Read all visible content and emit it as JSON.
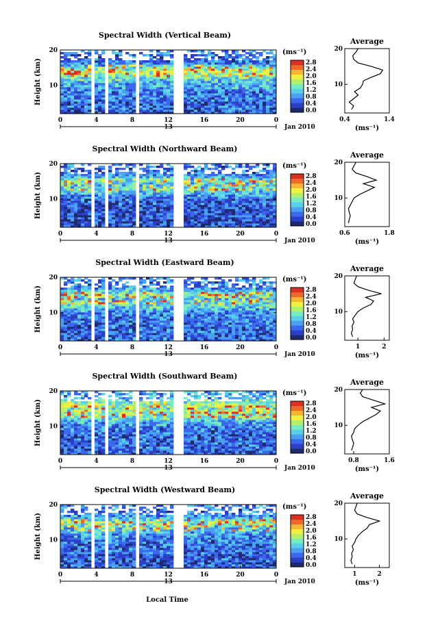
{
  "figure": {
    "time_axis_label": "Local Time",
    "date_label": "Jan 2010",
    "day_label": "13",
    "height_label": "Height (km)",
    "colorbar_unit": "(ms⁻¹)",
    "colorbar_ticks": [
      "0.0",
      "0.4",
      "0.8",
      "1.2",
      "1.6",
      "2.0",
      "2.4",
      "2.8"
    ],
    "colorscale": [
      "#1e2a6e",
      "#2c3fc8",
      "#3a68ee",
      "#4aa0f2",
      "#58d0ec",
      "#76ecc0",
      "#b6f06a",
      "#f0f040",
      "#f6b634",
      "#ee6a2a",
      "#dc3024"
    ],
    "average_title": "Average",
    "average_unit": "(ms⁻¹)"
  },
  "chart_data": [
    {
      "type": "heatmap",
      "title": "Spectral Width (Vertical Beam)",
      "xlabel": "Local Time",
      "ylabel": "Height (km)",
      "xlim": [
        0,
        24
      ],
      "ylim": [
        2,
        20
      ],
      "x_ticks": [
        "0",
        "4",
        "8",
        "12",
        "16",
        "20",
        "0"
      ],
      "y_ticks": [
        "10",
        "20"
      ],
      "colorbar": {
        "min": 0.0,
        "max": 3.0,
        "unit": "(ms⁻¹)"
      },
      "gaps_hours": [
        [
          3.6,
          3.8
        ],
        [
          5.0,
          5.2
        ],
        [
          5.6,
          5.8
        ],
        [
          8.5,
          8.7
        ],
        [
          10.9,
          11.1
        ],
        [
          12.4,
          13.8
        ],
        [
          17.8,
          18.0
        ]
      ],
      "average": {
        "title": "Average",
        "xlabel": "(ms⁻¹)",
        "xlim": [
          0.4,
          1.4
        ],
        "x_ticks": [
          "0.4",
          "1.4"
        ],
        "y_ticks": [
          "10",
          "20"
        ],
        "height_km": [
          3,
          4,
          5,
          6,
          7,
          8,
          9,
          10,
          11,
          12,
          13,
          14,
          15,
          16,
          17,
          18,
          19,
          20
        ],
        "width_ms": [
          0.55,
          0.6,
          0.5,
          0.6,
          0.7,
          0.62,
          0.75,
          0.8,
          0.82,
          1.0,
          1.2,
          1.25,
          1.0,
          0.7,
          0.6,
          0.58,
          0.65,
          0.7
        ]
      }
    },
    {
      "type": "heatmap",
      "title": "Spectral Width (Northward Beam)",
      "xlabel": "Local Time",
      "ylabel": "Height (km)",
      "xlim": [
        0,
        24
      ],
      "ylim": [
        2,
        20
      ],
      "x_ticks": [
        "0",
        "4",
        "8",
        "12",
        "16",
        "20",
        "0"
      ],
      "y_ticks": [
        "10",
        "20"
      ],
      "colorbar": {
        "min": 0.0,
        "max": 3.0,
        "unit": "(ms⁻¹)"
      },
      "gaps_hours": [
        [
          3.6,
          3.8
        ],
        [
          5.0,
          5.2
        ],
        [
          5.6,
          5.8
        ],
        [
          8.5,
          8.7
        ],
        [
          10.9,
          11.1
        ],
        [
          12.4,
          13.8
        ],
        [
          17.8,
          18.0
        ]
      ],
      "average": {
        "title": "Average",
        "xlabel": "(ms⁻¹)",
        "xlim": [
          0.6,
          1.8
        ],
        "x_ticks": [
          "0.6",
          "1.8"
        ],
        "y_ticks": [
          "10",
          "20"
        ],
        "height_km": [
          3,
          4,
          5,
          6,
          7,
          8,
          9,
          10,
          11,
          12,
          13,
          14,
          15,
          16,
          17,
          18,
          19,
          20
        ],
        "width_ms": [
          0.7,
          0.72,
          0.75,
          0.72,
          0.7,
          0.75,
          0.8,
          0.85,
          1.0,
          1.2,
          1.4,
          1.1,
          1.45,
          1.2,
          0.9,
          0.8,
          0.85,
          0.9
        ]
      }
    },
    {
      "type": "heatmap",
      "title": "Spectral Width (Eastward Beam)",
      "xlabel": "Local Time",
      "ylabel": "Height (km)",
      "xlim": [
        0,
        24
      ],
      "ylim": [
        2,
        20
      ],
      "x_ticks": [
        "0",
        "4",
        "8",
        "12",
        "16",
        "20",
        "0"
      ],
      "y_ticks": [
        "10",
        "20"
      ],
      "colorbar": {
        "min": 0.0,
        "max": 3.0,
        "unit": "(ms⁻¹)"
      },
      "gaps_hours": [
        [
          3.6,
          3.8
        ],
        [
          5.0,
          5.2
        ],
        [
          5.6,
          5.8
        ],
        [
          8.5,
          8.7
        ],
        [
          10.9,
          11.1
        ],
        [
          12.4,
          13.8
        ],
        [
          17.8,
          18.0
        ]
      ],
      "average": {
        "title": "Average",
        "xlabel": "(ms⁻¹)",
        "xlim": [
          0.5,
          2.2
        ],
        "x_ticks": [
          "1",
          "2"
        ],
        "y_ticks": [
          "10",
          "20"
        ],
        "height_km": [
          3,
          4,
          5,
          6,
          7,
          8,
          9,
          10,
          11,
          12,
          13,
          14,
          15,
          16,
          17,
          18,
          19,
          20
        ],
        "width_ms": [
          0.8,
          0.75,
          0.8,
          0.78,
          0.85,
          0.8,
          0.9,
          1.0,
          1.2,
          1.5,
          1.6,
          1.3,
          1.9,
          1.4,
          1.0,
          0.85,
          0.9,
          0.95
        ]
      }
    },
    {
      "type": "heatmap",
      "title": "Spectral Width (Southward Beam)",
      "xlabel": "Local Time",
      "ylabel": "Height (km)",
      "xlim": [
        0,
        24
      ],
      "ylim": [
        2,
        20
      ],
      "x_ticks": [
        "0",
        "4",
        "8",
        "12",
        "16",
        "20",
        "0"
      ],
      "y_ticks": [
        "10",
        "20"
      ],
      "colorbar": {
        "min": 0.0,
        "max": 3.0,
        "unit": "(ms⁻¹)"
      },
      "gaps_hours": [
        [
          3.6,
          3.8
        ],
        [
          5.0,
          5.2
        ],
        [
          5.6,
          5.8
        ],
        [
          8.5,
          8.7
        ],
        [
          10.9,
          11.1
        ],
        [
          12.4,
          13.8
        ],
        [
          17.8,
          18.0
        ]
      ],
      "average": {
        "title": "Average",
        "xlabel": "(ms⁻¹)",
        "xlim": [
          0.6,
          1.6
        ],
        "x_ticks": [
          "0.8",
          "1.6"
        ],
        "y_ticks": [
          "10",
          "20"
        ],
        "height_km": [
          3,
          4,
          5,
          6,
          7,
          8,
          9,
          10,
          11,
          12,
          13,
          14,
          15,
          16,
          17,
          18,
          19,
          20
        ],
        "width_ms": [
          0.75,
          0.78,
          0.8,
          0.77,
          0.75,
          0.8,
          0.82,
          0.9,
          1.0,
          1.15,
          1.3,
          1.4,
          1.2,
          1.5,
          1.25,
          1.0,
          0.95,
          1.0
        ]
      }
    },
    {
      "type": "heatmap",
      "title": "Spectral Width (Westward Beam)",
      "xlabel": "Local Time",
      "ylabel": "Height (km)",
      "xlim": [
        0,
        24
      ],
      "ylim": [
        2,
        20
      ],
      "x_ticks": [
        "0",
        "4",
        "8",
        "12",
        "16",
        "20",
        "0"
      ],
      "y_ticks": [
        "10",
        "20"
      ],
      "colorbar": {
        "min": 0.0,
        "max": 3.0,
        "unit": "(ms⁻¹)"
      },
      "gaps_hours": [
        [
          3.6,
          3.8
        ],
        [
          5.0,
          5.2
        ],
        [
          5.6,
          5.8
        ],
        [
          8.5,
          8.7
        ],
        [
          10.9,
          11.1
        ],
        [
          12.4,
          13.8
        ],
        [
          17.8,
          18.0
        ]
      ],
      "average": {
        "title": "Average",
        "xlabel": "(ms⁻¹)",
        "xlim": [
          0.6,
          2.4
        ],
        "x_ticks": [
          "1",
          "2"
        ],
        "y_ticks": [
          "10",
          "20"
        ],
        "height_km": [
          3,
          4,
          5,
          6,
          7,
          8,
          9,
          10,
          11,
          12,
          13,
          14,
          15,
          16,
          17,
          18,
          19,
          20
        ],
        "width_ms": [
          0.9,
          0.85,
          0.9,
          0.88,
          0.95,
          0.9,
          1.0,
          1.05,
          1.15,
          1.3,
          1.5,
          1.6,
          2.0,
          1.5,
          1.1,
          1.0,
          1.05,
          1.1
        ]
      }
    }
  ]
}
